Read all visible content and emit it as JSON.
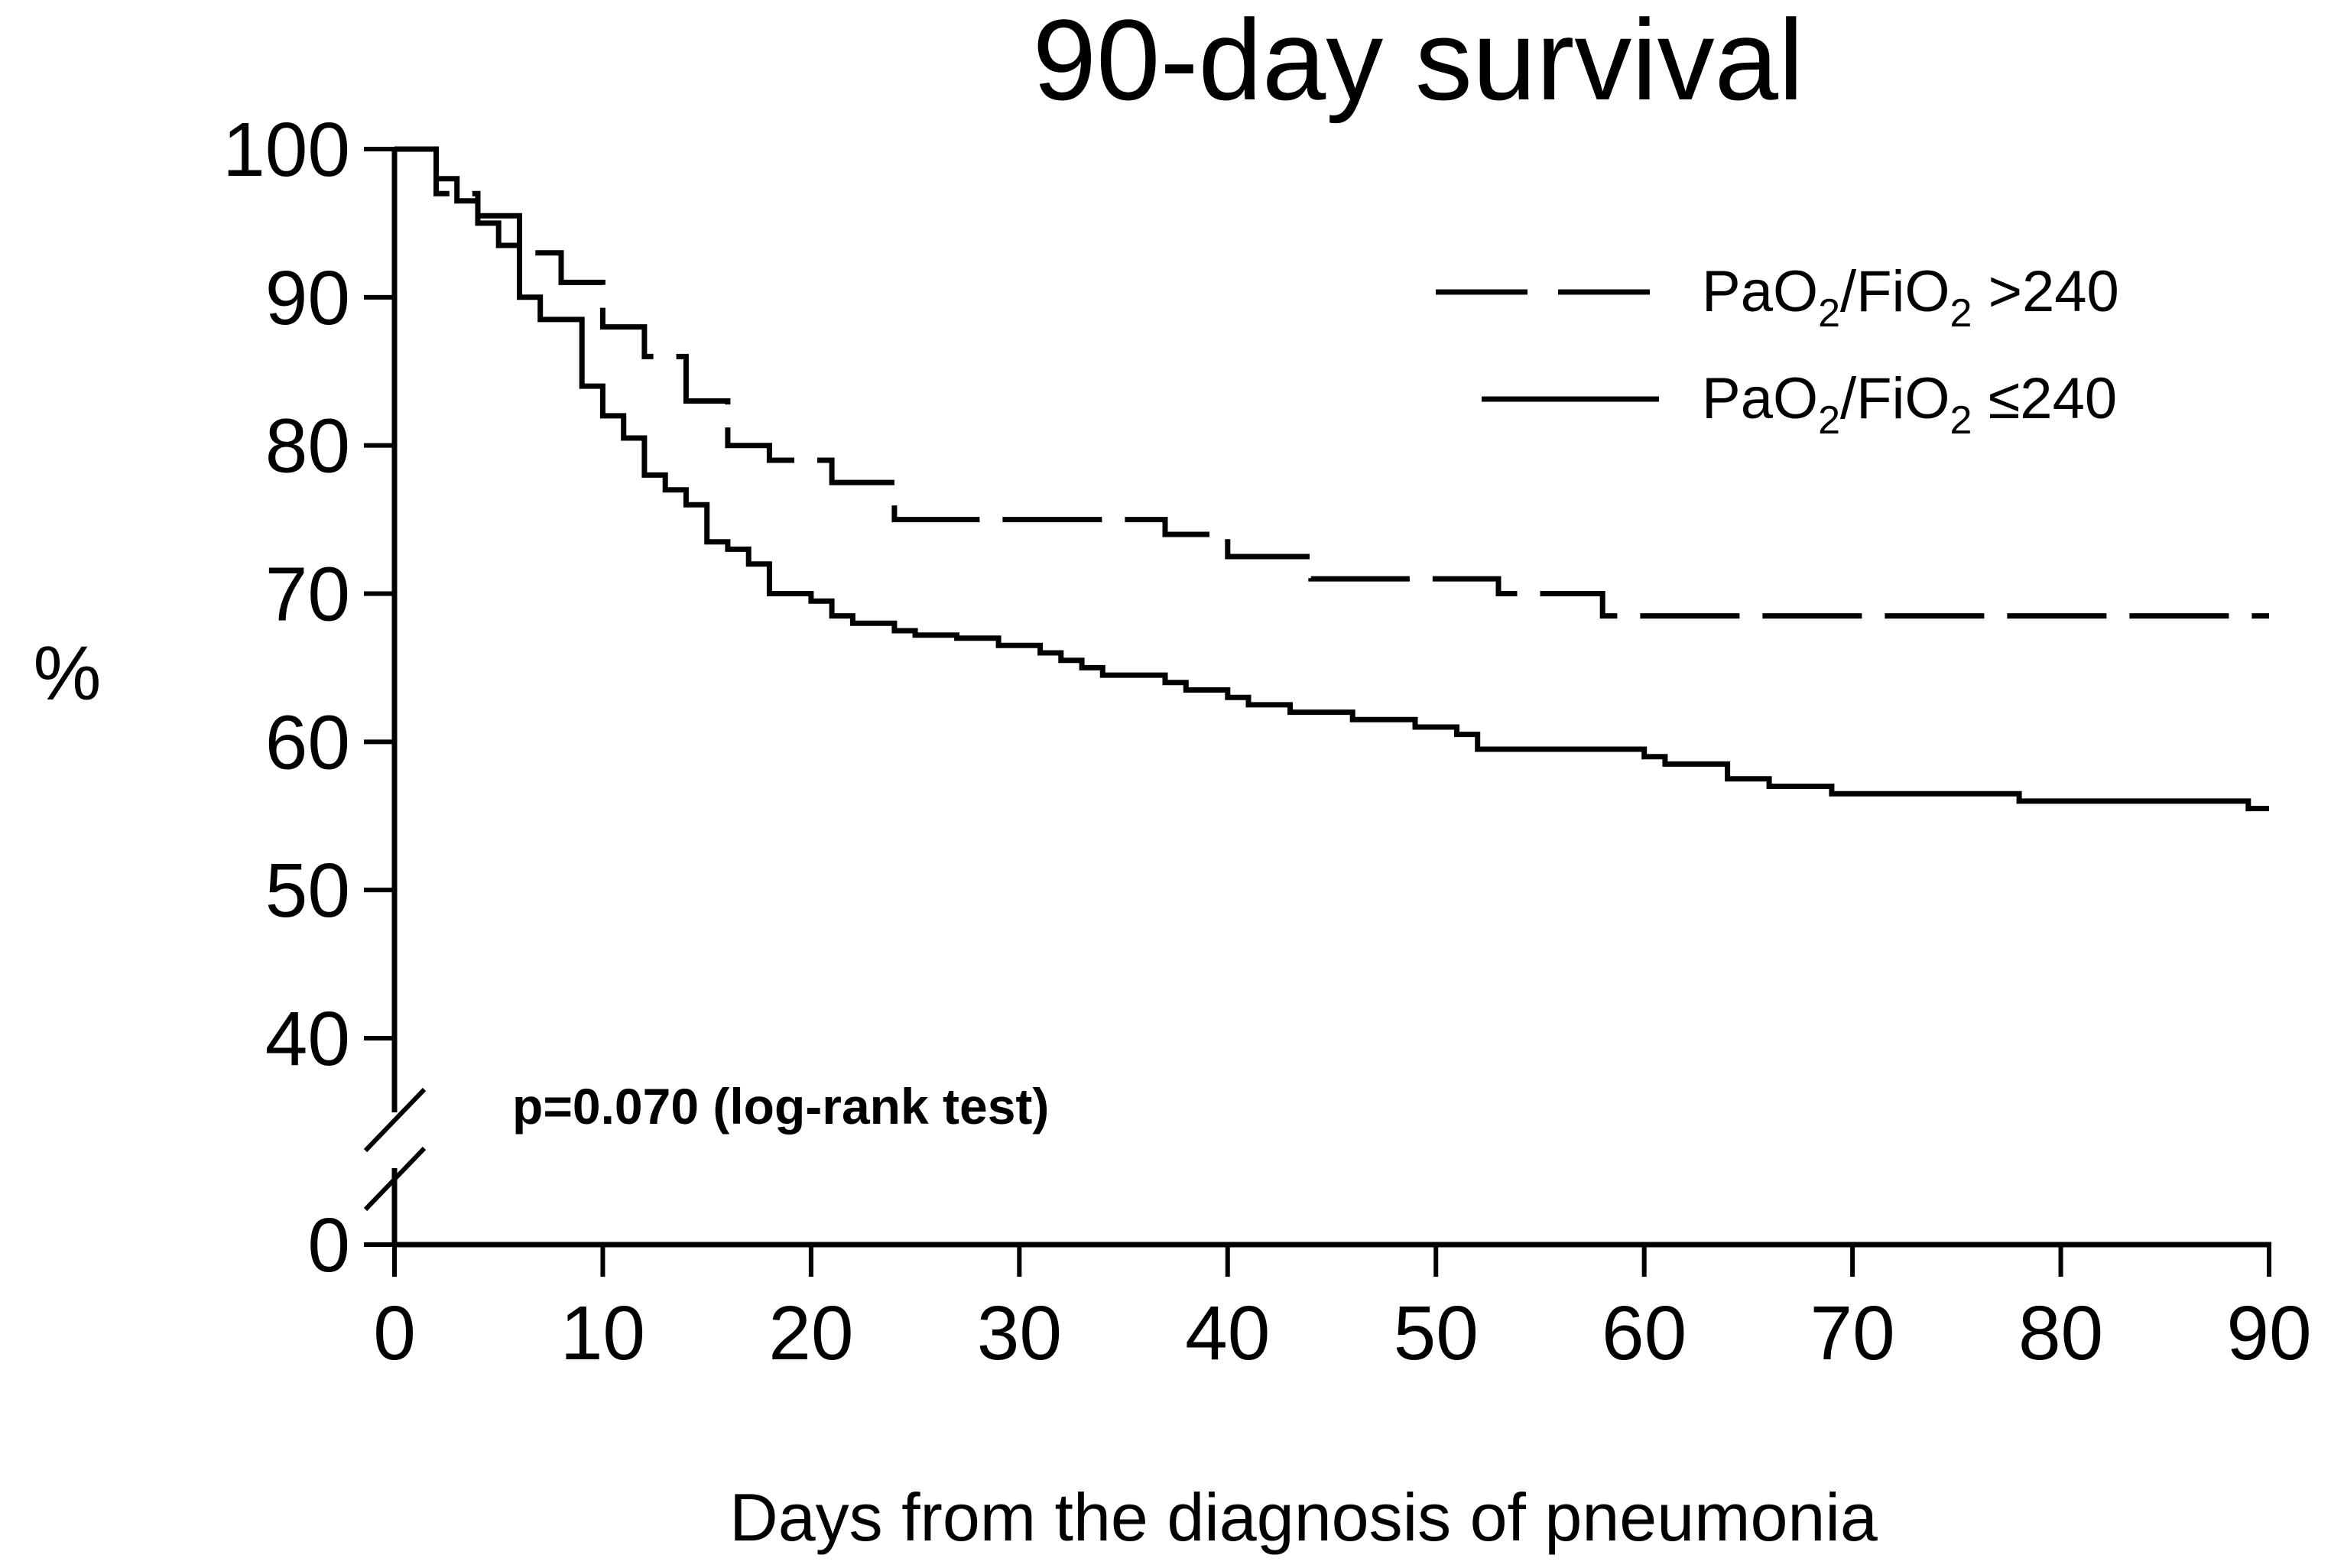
{
  "chart_data": {
    "type": "line",
    "title": "90-day survival",
    "xlabel": "Days from the diagnosis of pneumonia",
    "ylabel": "%",
    "xlim": [
      0,
      90
    ],
    "ylim": [
      0,
      100
    ],
    "y_axis_break": {
      "from": 0,
      "to": 37
    },
    "x_ticks": [
      0,
      10,
      20,
      30,
      40,
      50,
      60,
      70,
      80,
      90
    ],
    "y_ticks": [
      0,
      40,
      50,
      60,
      70,
      80,
      90,
      100
    ],
    "grid": false,
    "legend_position": "top-right",
    "annotation": "p=0.070 (log-rank test)",
    "series": [
      {
        "name": "PaO2/FiO2 >240",
        "legend_parts": {
          "a": "PaO",
          "b": "2",
          "c": "/FiO",
          "d": "2",
          "e": " >240"
        },
        "style": "dashed",
        "x": [
          0,
          2,
          2,
          4,
          4,
          6,
          6,
          8,
          8,
          10,
          10,
          12,
          12,
          14,
          14,
          16,
          16,
          18,
          18,
          21,
          21,
          24,
          24,
          37,
          37,
          40,
          40,
          44,
          44,
          53,
          53,
          58,
          58,
          90
        ],
        "y": [
          100,
          100,
          97,
          97,
          95.5,
          95.5,
          93,
          93,
          91,
          91,
          88,
          88,
          86,
          86,
          83,
          83,
          80,
          80,
          79,
          79,
          77.5,
          77.5,
          75,
          75,
          74,
          74,
          72.5,
          72.5,
          71,
          71,
          70,
          70,
          68.5,
          68.5
        ]
      },
      {
        "name": "PaO2/FiO2 ≤240",
        "legend_parts": {
          "a": "PaO",
          "b": "2",
          "c": "/FiO",
          "d": "2",
          "e": " ≤240"
        },
        "style": "solid",
        "x": [
          0,
          2,
          2,
          3,
          3,
          4,
          4,
          5,
          5,
          6,
          6,
          7,
          7,
          9,
          9,
          10,
          10,
          11,
          11,
          12,
          12,
          13,
          13,
          14,
          14,
          15,
          15,
          16,
          16,
          17,
          17,
          18,
          18,
          20,
          20,
          21,
          21,
          22,
          22,
          24,
          24,
          25,
          25,
          27,
          27,
          29,
          29,
          31,
          31,
          32,
          32,
          33,
          33,
          34,
          34,
          37,
          37,
          38,
          38,
          40,
          40,
          41,
          41,
          43,
          43,
          46,
          46,
          49,
          49,
          51,
          51,
          52,
          52,
          60,
          60,
          61,
          61,
          64,
          64,
          66,
          66,
          69,
          69,
          78,
          78,
          89,
          89,
          90
        ],
        "y": [
          100,
          100,
          98,
          98,
          96.5,
          96.5,
          95,
          95,
          93.5,
          93.5,
          90,
          90,
          88.5,
          88.5,
          84,
          84,
          82,
          82,
          80.5,
          80.5,
          78,
          78,
          77,
          77,
          76,
          76,
          73.5,
          73.5,
          73,
          73,
          72,
          72,
          70,
          70,
          69.5,
          69.5,
          68.5,
          68.5,
          68,
          68,
          67.5,
          67.5,
          67.2,
          67.2,
          67,
          67,
          66.5,
          66.5,
          66,
          66,
          65.5,
          65.5,
          65,
          65,
          64.5,
          64.5,
          64,
          64,
          63.5,
          63.5,
          63,
          63,
          62.5,
          62.5,
          62,
          62,
          61.5,
          61.5,
          61,
          61,
          60.5,
          60.5,
          59.5,
          59.5,
          59,
          59,
          58.5,
          58.5,
          57.5,
          57.5,
          57,
          57,
          56.5,
          56.5,
          56,
          56,
          55.5,
          55.5
        ]
      }
    ]
  }
}
